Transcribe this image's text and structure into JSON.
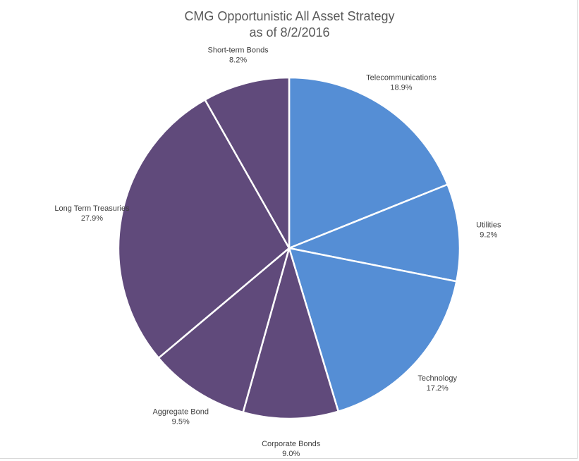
{
  "chart_data": {
    "type": "pie",
    "title": "CMG Opportunistic All Asset Strategy",
    "subtitle": "as of 8/2/2016",
    "slices": [
      {
        "label": "Telecommunications",
        "value": 18.9,
        "display": "18.9%",
        "color": "#558ed5"
      },
      {
        "label": "Utilities",
        "value": 9.2,
        "display": "9.2%",
        "color": "#558ed5"
      },
      {
        "label": "Technology",
        "value": 17.2,
        "display": "17.2%",
        "color": "#558ed5"
      },
      {
        "label": "Corporate Bonds",
        "value": 9.0,
        "display": "9.0%",
        "color": "#604a7b"
      },
      {
        "label": "Aggregate Bond",
        "value": 9.5,
        "display": "9.5%",
        "color": "#604a7b"
      },
      {
        "label": "Long Term Treasuries",
        "value": 27.9,
        "display": "27.9%",
        "color": "#604a7b"
      },
      {
        "label": "Short-term Bonds",
        "value": 8.2,
        "display": "8.2%",
        "color": "#604a7b"
      }
    ],
    "start": "12 o'clock",
    "direction": "clockwise",
    "legend": "none",
    "data_labels": "outside-end"
  }
}
